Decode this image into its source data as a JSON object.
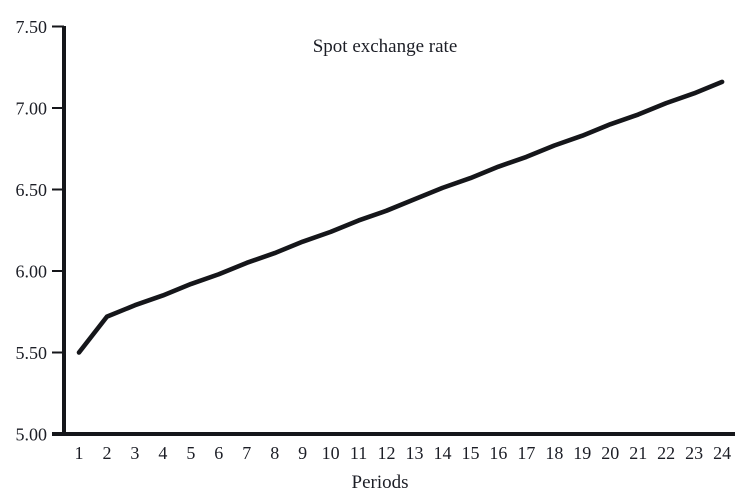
{
  "figure": {
    "background": "#ffffff"
  },
  "chart_data": {
    "type": "line",
    "title": "Spot exchange rate",
    "xlabel": "Periods",
    "ylabel": "",
    "x": [
      1,
      2,
      3,
      4,
      5,
      6,
      7,
      8,
      9,
      10,
      11,
      12,
      13,
      14,
      15,
      16,
      17,
      18,
      19,
      20,
      21,
      22,
      23,
      24
    ],
    "values": [
      5.5,
      5.72,
      5.79,
      5.85,
      5.92,
      5.98,
      6.05,
      6.11,
      6.18,
      6.24,
      6.31,
      6.37,
      6.44,
      6.51,
      6.57,
      6.64,
      6.7,
      6.77,
      6.83,
      6.9,
      6.96,
      7.03,
      7.09,
      7.16
    ],
    "ylim": [
      5.0,
      7.5
    ],
    "ytick_labels": [
      "5.00",
      "5.50",
      "6.00",
      "6.50",
      "7.00",
      "7.50"
    ],
    "ytick_values": [
      5.0,
      5.5,
      6.0,
      6.5,
      7.0,
      7.5
    ],
    "grid": false,
    "legend": "none",
    "line_color": "#15161a",
    "axis_color": "#15161a",
    "text_color": "#1c1e26"
  }
}
